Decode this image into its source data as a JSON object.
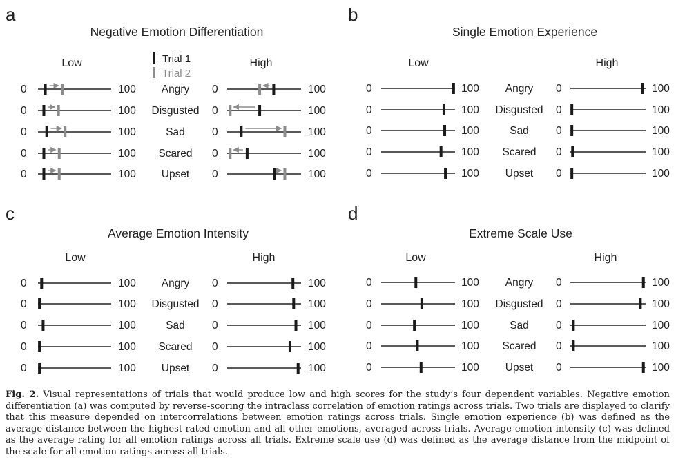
{
  "figure": {
    "legend": {
      "trial1": "Trial 1",
      "trial2": "Trial 2"
    },
    "colors": {
      "line": "#222222",
      "trial1": "#1a1a1a",
      "trial2": "#8c8c8c",
      "arrow": "#8c8c8c"
    },
    "scale_min": "0",
    "scale_max": "100",
    "emotions": [
      "Angry",
      "Disgusted",
      "Sad",
      "Scared",
      "Upset"
    ],
    "panels": [
      {
        "letter": "a",
        "title": "Negative Emotion Differentiation",
        "low_label": "Low",
        "high_label": "High",
        "show_legend": true,
        "low": [
          {
            "t1": 10,
            "t2": 33
          },
          {
            "t1": 8,
            "t2": 28
          },
          {
            "t1": 12,
            "t2": 37
          },
          {
            "t1": 8,
            "t2": 29
          },
          {
            "t1": 8,
            "t2": 29
          }
        ],
        "high": [
          {
            "t1": 63,
            "t2": 44
          },
          {
            "t1": 44,
            "t2": 4
          },
          {
            "t1": 19,
            "t2": 78
          },
          {
            "t1": 27,
            "t2": 4
          },
          {
            "t1": 64,
            "t2": 78
          }
        ]
      },
      {
        "letter": "b",
        "title": "Single Emotion Experience",
        "low_label": "Low",
        "high_label": "High",
        "show_legend": false,
        "low": [
          {
            "t1": 98
          },
          {
            "t1": 85
          },
          {
            "t1": 86
          },
          {
            "t1": 81
          },
          {
            "t1": 87
          }
        ],
        "high": [
          {
            "t1": 96
          },
          {
            "t1": 2
          },
          {
            "t1": 2
          },
          {
            "t1": 3
          },
          {
            "t1": 2
          }
        ]
      },
      {
        "letter": "c",
        "title": "Average Emotion Intensity",
        "low_label": "Low",
        "high_label": "High",
        "show_legend": false,
        "low": [
          {
            "t1": 5
          },
          {
            "t1": 2
          },
          {
            "t1": 7
          },
          {
            "t1": 2
          },
          {
            "t1": 2
          }
        ],
        "high": [
          {
            "t1": 89
          },
          {
            "t1": 90
          },
          {
            "t1": 93
          },
          {
            "t1": 85
          },
          {
            "t1": 96
          }
        ]
      },
      {
        "letter": "d",
        "title": "Extreme Scale Use",
        "low_label": "Low",
        "high_label": "High",
        "show_legend": false,
        "low": [
          {
            "t1": 47
          },
          {
            "t1": 55
          },
          {
            "t1": 45
          },
          {
            "t1": 49
          },
          {
            "t1": 54
          }
        ],
        "high": [
          {
            "t1": 97
          },
          {
            "t1": 93
          },
          {
            "t1": 4
          },
          {
            "t1": 4
          },
          {
            "t1": 97
          }
        ]
      }
    ]
  },
  "caption": {
    "label": "Fig. 2.",
    "text": "Visual representations of trials that would produce low and high scores for the study’s four dependent variables. Negative emotion differentiation (a) was computed by reverse-scoring the intraclass correlation of emotion ratings across trials. Two trials are displayed to clarify that this measure depended on intercorrelations between emotion ratings across trials. Single emotion experience (b) was defined as the average distance between the highest-rated emotion and all other emotions, averaged across trials. Average emotion intensity (c) was defined as the average rating for all emotion ratings across all trials. Extreme scale use (d) was defined as the average distance from the midpoint of the scale for all emotion ratings across all trials."
  }
}
